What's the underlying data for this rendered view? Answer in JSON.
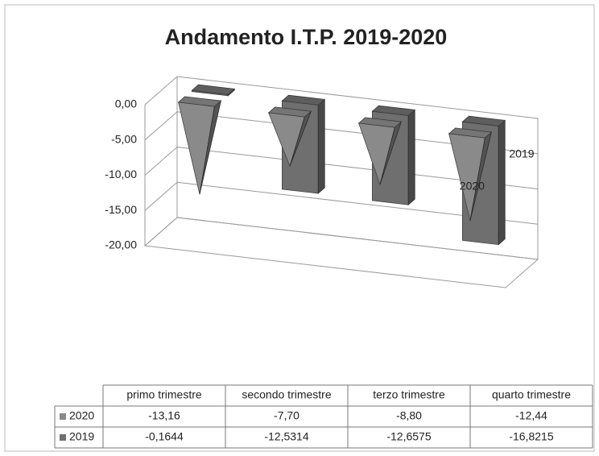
{
  "chart_data": {
    "type": "bar",
    "title": "Andamento I.T.P. 2019-2020",
    "categories": [
      "primo trimestre",
      "secondo trimestre",
      "terzo trimestre",
      "quarto trimestre"
    ],
    "series": [
      {
        "name": "2020",
        "color": "#8a8a8a",
        "shape": "pyramid",
        "values": [
          -13.16,
          -7.7,
          -8.8,
          -12.44
        ],
        "value_labels": [
          "-13,16",
          "-7,70",
          "-8,80",
          "-12,44"
        ]
      },
      {
        "name": "2019",
        "color": "#6f6f6f",
        "shape": "box",
        "values": [
          -0.1644,
          -12.5314,
          -12.6575,
          -16.8215
        ],
        "value_labels": [
          "-0,1644",
          "-12,5314",
          "-12,6575",
          "-16,8215"
        ]
      }
    ],
    "ylim": [
      -20,
      0
    ],
    "yticks": [
      {
        "value": 0,
        "label": "0,00"
      },
      {
        "value": -5,
        "label": "-5,00"
      },
      {
        "value": -10,
        "label": "-10,00"
      },
      {
        "value": -15,
        "label": "-15,00"
      },
      {
        "value": -20,
        "label": "-20,00"
      }
    ],
    "grid": true
  }
}
